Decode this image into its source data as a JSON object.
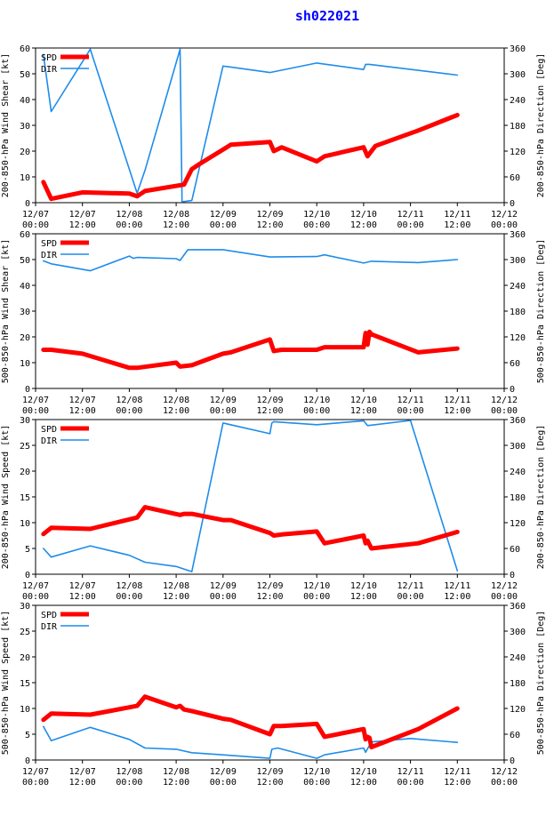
{
  "title": "sh022021",
  "colors": {
    "spd": "#ff0000",
    "dir": "#1e8ceb",
    "axis": "#000000",
    "title": "#0000ff"
  },
  "legend": {
    "spd": "SPD",
    "dir": "DIR"
  },
  "x_ticks": [
    "12/07\n00:00",
    "12/07\n12:00",
    "12/08\n00:00",
    "12/08\n12:00",
    "12/09\n00:00",
    "12/09\n12:00",
    "12/10\n00:00",
    "12/10\n12:00",
    "12/11\n00:00",
    "12/11\n12:00",
    "12/12\n00:00"
  ],
  "chart_data": [
    {
      "type": "line",
      "xlabel": "",
      "ylabel": "200-850-hPa Wind Shear [kt]",
      "y2label": "200-850-hPa Direction [Deg]",
      "xlim": [
        0,
        120
      ],
      "ylim": [
        0,
        60
      ],
      "y2lim": [
        0,
        360
      ],
      "yticks": [
        0,
        10,
        20,
        30,
        40,
        50,
        60
      ],
      "y2ticks": [
        0,
        60,
        120,
        180,
        240,
        300,
        360
      ],
      "series": [
        {
          "name": "SPD",
          "axis": "left",
          "x": [
            2,
            4,
            12,
            24,
            26,
            28,
            38,
            39,
            40,
            42,
            50,
            60,
            61,
            63,
            72,
            74,
            84,
            85,
            87,
            98,
            108
          ],
          "y": [
            8,
            1.5,
            4,
            3.5,
            2.5,
            4.5,
            7,
            10,
            13,
            15,
            22.5,
            23.5,
            20,
            21.5,
            16,
            18,
            21.5,
            18,
            22,
            28,
            34
          ]
        },
        {
          "name": "DIR",
          "axis": "right",
          "x": [
            2,
            4,
            14,
            26,
            28,
            37,
            37.5,
            40,
            48,
            60,
            72,
            84,
            84.5,
            85.5,
            108
          ],
          "y": [
            345,
            212,
            357,
            22,
            75,
            357,
            2,
            5,
            318,
            303,
            325,
            310,
            322,
            322,
            297
          ]
        }
      ]
    },
    {
      "type": "line",
      "xlabel": "",
      "ylabel": "500-850-hPa Wind Shear [kt]",
      "y2label": "500-850-hPa Direction [Deg]",
      "xlim": [
        0,
        120
      ],
      "ylim": [
        0,
        60
      ],
      "y2lim": [
        0,
        360
      ],
      "yticks": [
        0,
        10,
        20,
        30,
        40,
        50,
        60
      ],
      "y2ticks": [
        0,
        60,
        120,
        180,
        240,
        300,
        360
      ],
      "series": [
        {
          "name": "SPD",
          "axis": "left",
          "x": [
            2,
            4,
            12,
            24,
            26,
            36,
            37,
            40,
            48,
            50,
            60,
            61,
            63,
            72,
            74,
            84,
            84.5,
            85,
            85.5,
            86,
            98,
            108
          ],
          "y": [
            15,
            15,
            13.5,
            8,
            8,
            10,
            8.5,
            9,
            13.5,
            14,
            19,
            14.5,
            15,
            15,
            16,
            16,
            21.5,
            17,
            22,
            21,
            14,
            15.5
          ]
        },
        {
          "name": "DIR",
          "axis": "right",
          "x": [
            2,
            4,
            14,
            24,
            25,
            26,
            36,
            37,
            39,
            48,
            60,
            72,
            74,
            84,
            86,
            98,
            108
          ],
          "y": [
            297,
            290,
            274,
            308,
            303,
            305,
            302,
            298,
            323,
            323,
            306,
            307,
            311,
            292,
            296,
            293,
            300
          ]
        }
      ]
    },
    {
      "type": "line",
      "xlabel": "",
      "ylabel": "200-850-hPa Wind Speed [kt]",
      "y2label": "200-850-hPa Direction [Deg]",
      "xlim": [
        0,
        120
      ],
      "ylim": [
        0,
        30
      ],
      "y2lim": [
        0,
        360
      ],
      "yticks": [
        0,
        5,
        10,
        15,
        20,
        25,
        30
      ],
      "y2ticks": [
        0,
        60,
        120,
        180,
        240,
        300,
        360
      ],
      "series": [
        {
          "name": "SPD",
          "axis": "left",
          "x": [
            2,
            4,
            14,
            26,
            28,
            37,
            38,
            40,
            48,
            50,
            60,
            61,
            63,
            72,
            74,
            84,
            84.5,
            85,
            86,
            98,
            108
          ],
          "y": [
            7.8,
            9,
            8.8,
            11,
            13,
            11.5,
            11.7,
            11.7,
            10.5,
            10.5,
            8,
            7.5,
            7.7,
            8.3,
            6,
            7.5,
            6,
            6.5,
            5,
            6,
            8.2
          ]
        },
        {
          "name": "DIR",
          "axis": "right",
          "x": [
            2,
            4,
            14,
            24,
            28,
            36,
            40,
            48,
            60,
            60.5,
            61,
            72,
            84,
            85,
            86,
            96,
            108
          ],
          "y": [
            60,
            40,
            66,
            44,
            28,
            18,
            6,
            352,
            327,
            352,
            355,
            348,
            357,
            346,
            347,
            358,
            8
          ]
        }
      ]
    },
    {
      "type": "line",
      "xlabel": "",
      "ylabel": "500-850-hPa Wind Speed [kt]",
      "y2label": "500-850-hPa Direction [Deg]",
      "xlim": [
        0,
        120
      ],
      "ylim": [
        0,
        30
      ],
      "y2lim": [
        0,
        360
      ],
      "yticks": [
        0,
        5,
        10,
        15,
        20,
        25,
        30
      ],
      "y2ticks": [
        0,
        60,
        120,
        180,
        240,
        300,
        360
      ],
      "series": [
        {
          "name": "SPD",
          "axis": "left",
          "x": [
            2,
            4,
            14,
            26,
            28,
            36,
            37,
            38,
            40,
            48,
            50,
            60,
            61,
            63,
            72,
            74,
            84,
            84.5,
            85,
            85.5,
            86,
            98,
            108
          ],
          "y": [
            7.8,
            9,
            8.8,
            10.5,
            12.3,
            10.2,
            10.5,
            9.8,
            9.5,
            8,
            7.8,
            5,
            6.6,
            6.6,
            7,
            4.5,
            6,
            4,
            4.5,
            4.3,
            2.5,
            6,
            10
          ]
        },
        {
          "name": "DIR",
          "axis": "right",
          "x": [
            2,
            4,
            14,
            24,
            28,
            36,
            40,
            48,
            60,
            60.5,
            62,
            72,
            74,
            84,
            84.5,
            86,
            96,
            108
          ],
          "y": [
            78,
            45,
            76,
            48,
            28,
            25,
            17,
            12,
            4,
            25,
            28,
            4,
            12,
            28,
            18,
            42,
            50,
            41
          ]
        }
      ]
    }
  ]
}
